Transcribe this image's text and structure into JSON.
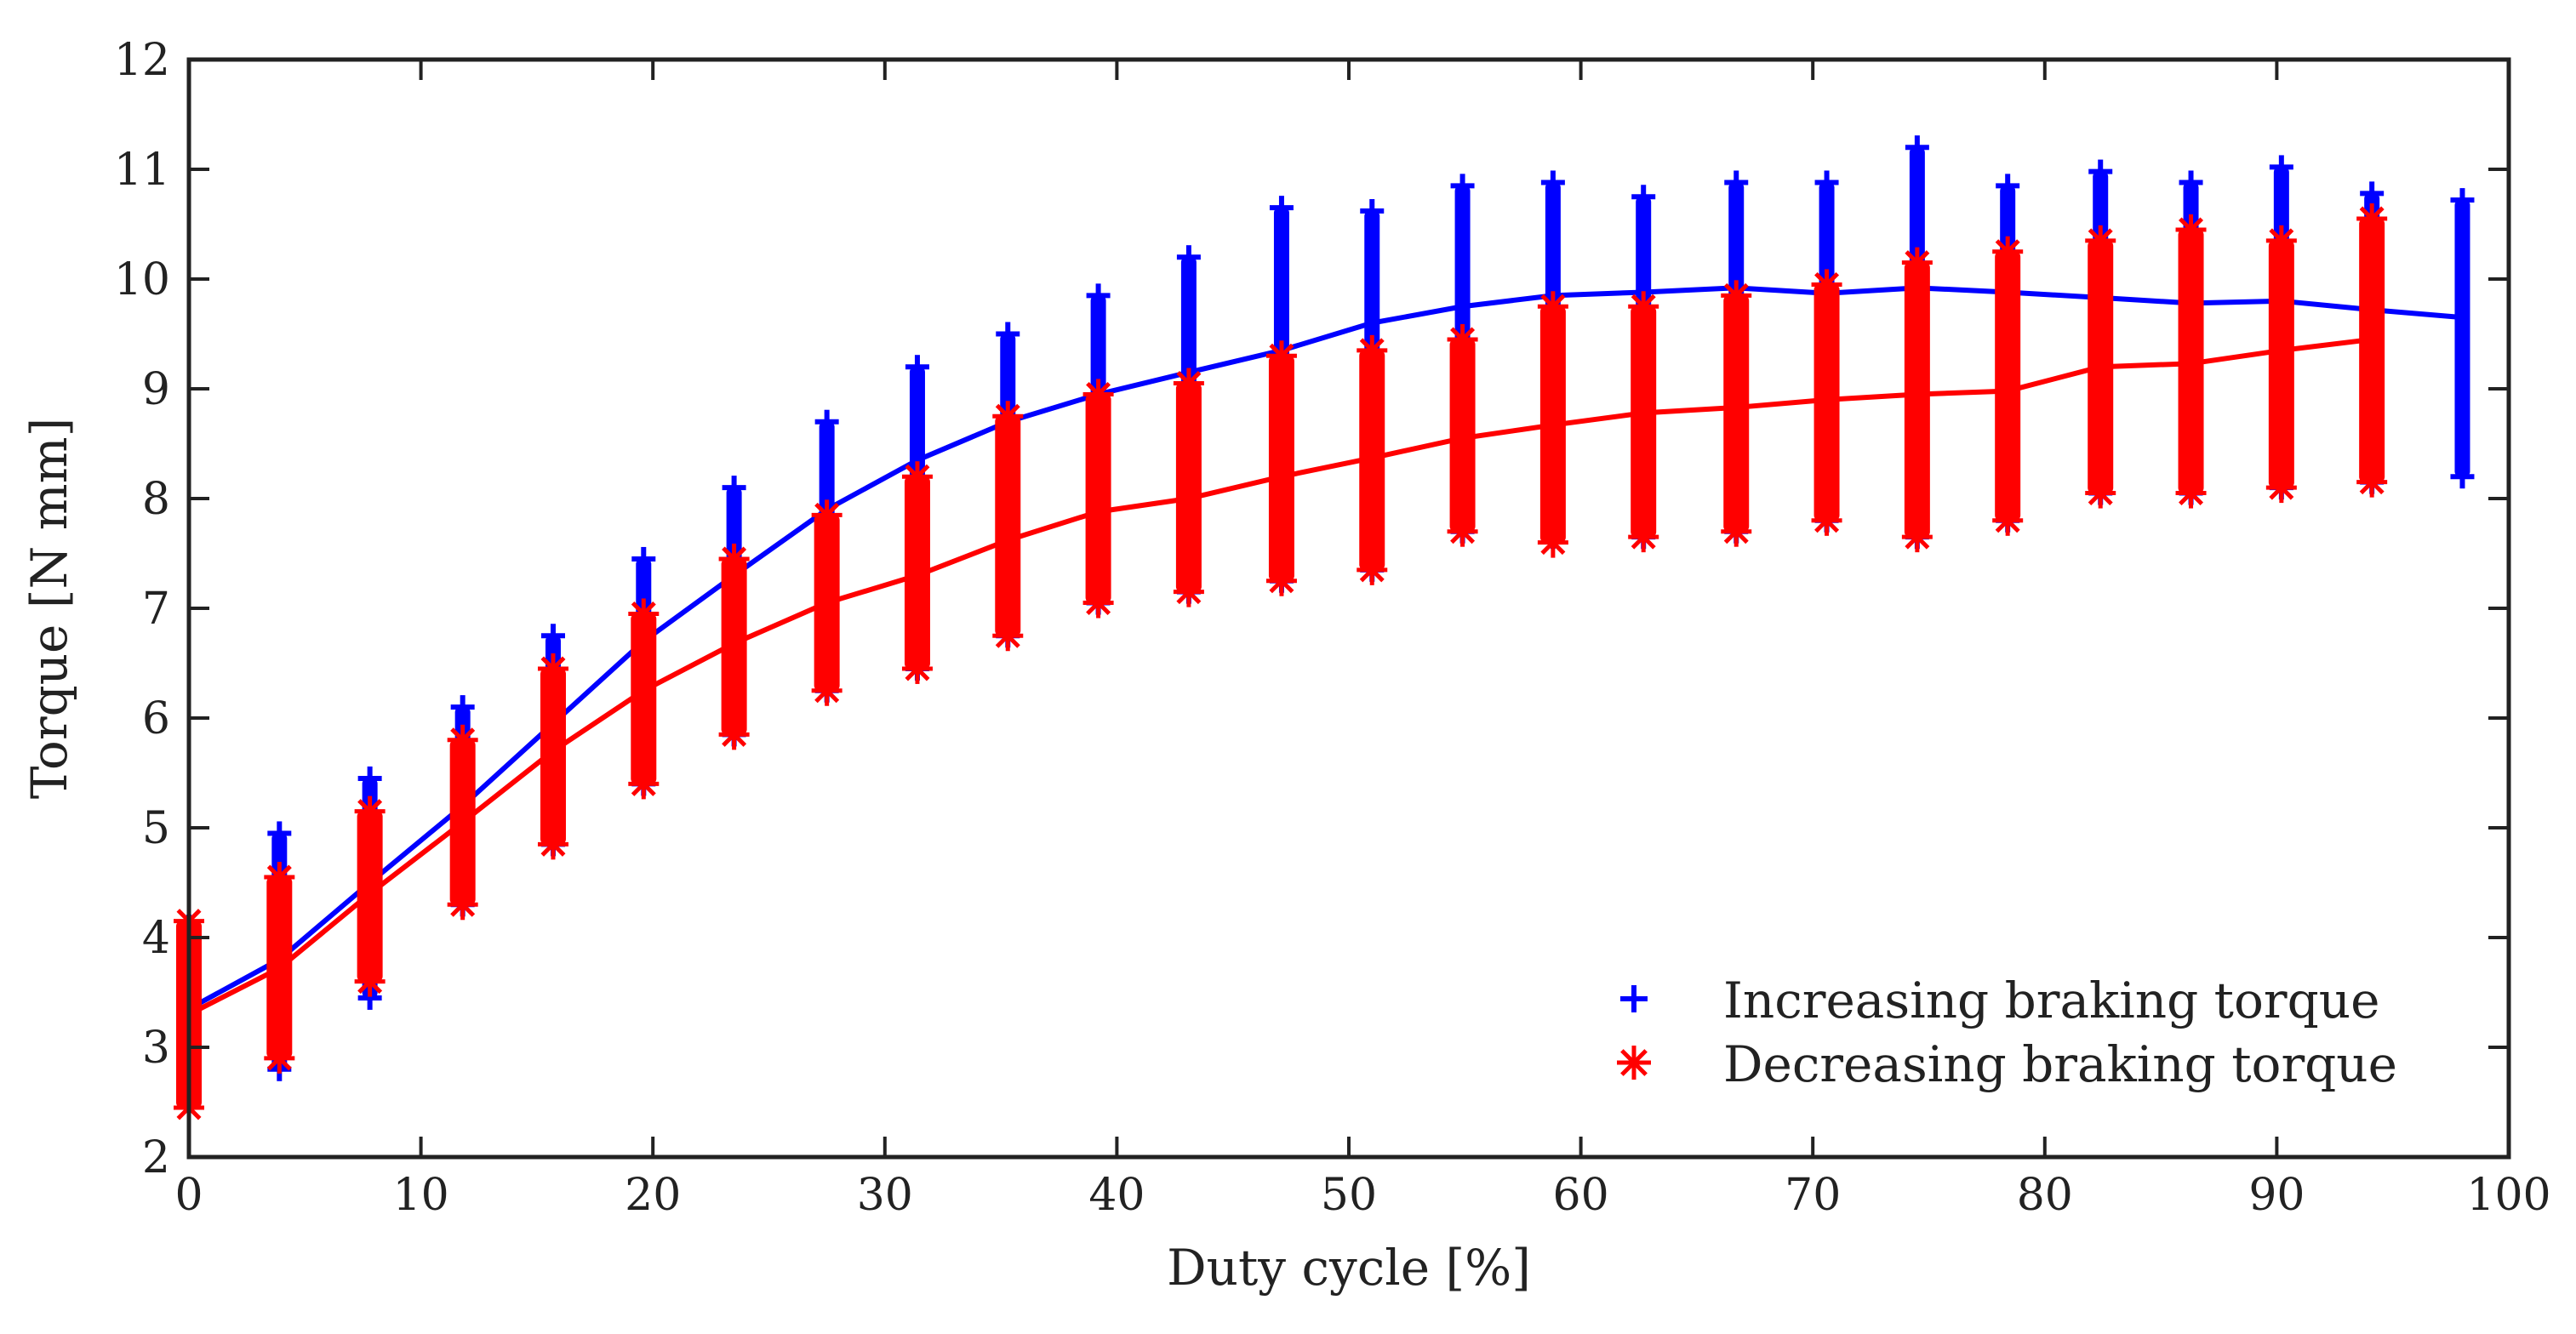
{
  "chart_data": {
    "type": "scatter",
    "title": "",
    "xlabel": "Duty cycle [%]",
    "ylabel": "Torque [N mm]",
    "xlim": [
      0,
      100
    ],
    "ylim": [
      2,
      12
    ],
    "xticks": [
      "0",
      "10",
      "20",
      "30",
      "40",
      "50",
      "60",
      "70",
      "80",
      "90",
      "100"
    ],
    "yticks": [
      "2",
      "3",
      "4",
      "5",
      "6",
      "7",
      "8",
      "9",
      "10",
      "11",
      "12"
    ],
    "grid": false,
    "legend_position": "bottom-right",
    "series": [
      {
        "name": "Increasing braking torque",
        "color": "#0000ff",
        "marker": "plus",
        "x": [
          0,
          3.9,
          7.8,
          11.8,
          15.7,
          19.6,
          23.5,
          27.5,
          31.4,
          35.3,
          39.2,
          43.1,
          47.1,
          51.0,
          54.9,
          58.8,
          62.7,
          66.7,
          70.6,
          74.5,
          78.4,
          82.4,
          86.3,
          90.2,
          94.1,
          98.0
        ],
        "mean": [
          3.35,
          3.8,
          4.5,
          5.2,
          5.95,
          6.7,
          7.3,
          7.9,
          8.35,
          8.7,
          8.95,
          9.15,
          9.35,
          9.6,
          9.75,
          9.85,
          9.88,
          9.92,
          9.87,
          9.92,
          9.88,
          9.83,
          9.78,
          9.8,
          9.72,
          9.65
        ],
        "min": [
          2.8,
          2.8,
          3.45,
          4.3,
          4.85,
          5.4,
          5.85,
          6.25,
          6.45,
          6.75,
          7.05,
          7.15,
          7.25,
          7.35,
          7.7,
          7.65,
          7.65,
          7.7,
          7.8,
          7.65,
          7.8,
          8.05,
          8.05,
          8.1,
          8.15,
          8.2
        ],
        "max": [
          4.1,
          4.95,
          5.45,
          6.1,
          6.75,
          7.45,
          8.1,
          8.7,
          9.2,
          9.5,
          9.85,
          10.2,
          10.65,
          10.62,
          10.85,
          10.88,
          10.75,
          10.88,
          10.88,
          11.2,
          10.85,
          10.98,
          10.88,
          11.02,
          10.78,
          10.72
        ]
      },
      {
        "name": "Decreasing braking torque",
        "color": "#ff0000",
        "marker": "asterisk",
        "x": [
          0,
          3.9,
          7.8,
          11.8,
          15.7,
          19.6,
          23.5,
          27.5,
          31.4,
          35.3,
          39.2,
          43.1,
          47.1,
          51.0,
          54.9,
          58.8,
          62.7,
          66.7,
          70.6,
          74.5,
          78.4,
          82.4,
          86.3,
          90.2,
          94.1
        ],
        "mean": [
          3.3,
          3.72,
          4.4,
          5.05,
          5.7,
          6.25,
          6.68,
          7.05,
          7.3,
          7.62,
          7.88,
          8.0,
          8.2,
          8.37,
          8.55,
          8.67,
          8.78,
          8.83,
          8.9,
          8.95,
          8.98,
          9.2,
          9.23,
          9.35,
          9.45
        ],
        "min": [
          2.45,
          2.9,
          3.6,
          4.3,
          4.85,
          5.4,
          5.85,
          6.25,
          6.45,
          6.75,
          7.05,
          7.15,
          7.25,
          7.35,
          7.7,
          7.6,
          7.65,
          7.7,
          7.8,
          7.65,
          7.8,
          8.05,
          8.05,
          8.1,
          8.15
        ],
        "max": [
          4.15,
          4.55,
          5.15,
          5.8,
          6.45,
          6.95,
          7.45,
          7.85,
          8.2,
          8.75,
          8.95,
          9.05,
          9.3,
          9.35,
          9.45,
          9.75,
          9.75,
          9.85,
          9.95,
          10.15,
          10.25,
          10.35,
          10.45,
          10.35,
          10.55
        ]
      }
    ]
  }
}
